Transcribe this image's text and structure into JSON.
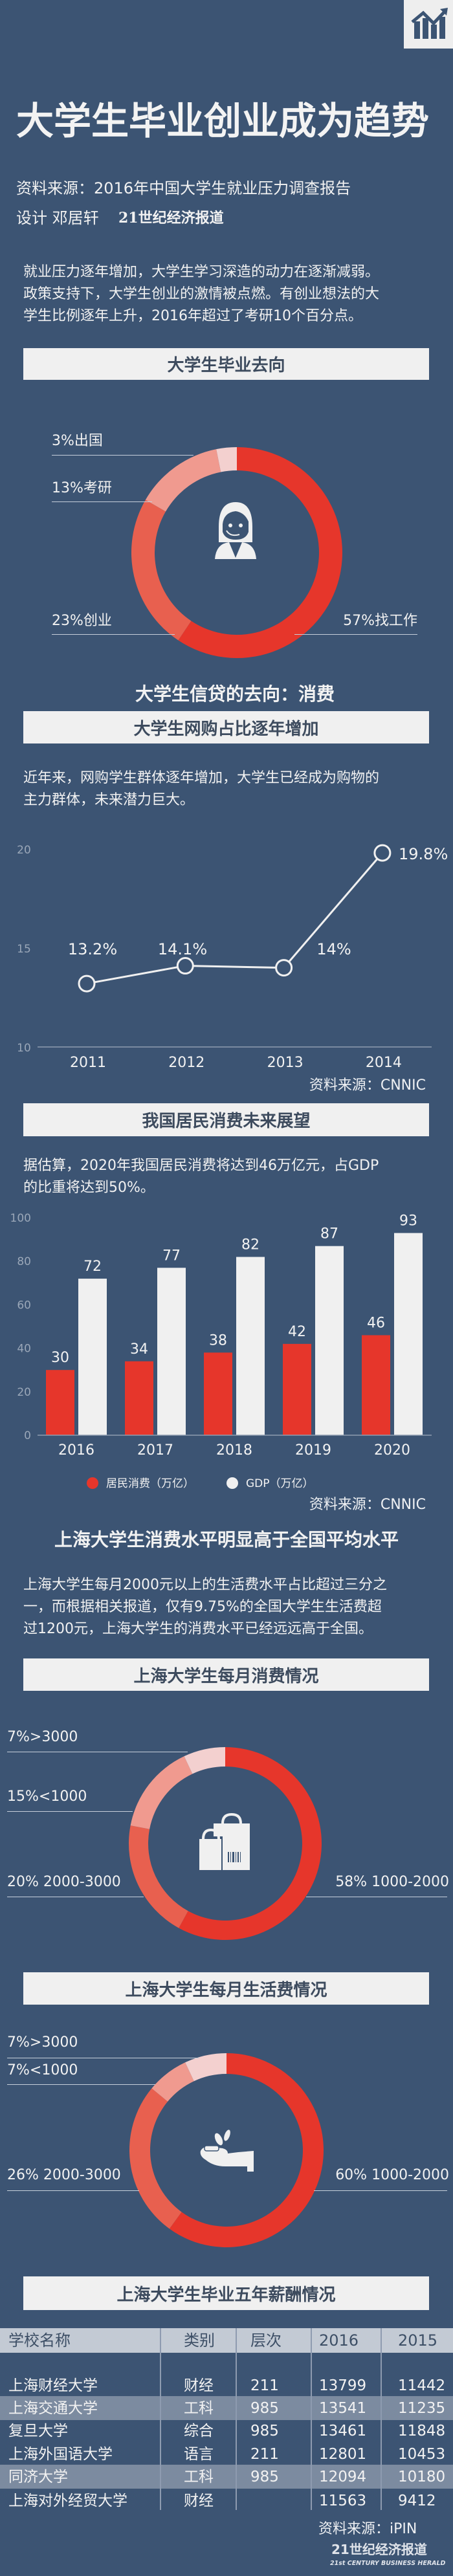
{
  "colors": {
    "background": "#3c5473",
    "banner": "#f0f0f0",
    "banner_text": "#3d4b5e",
    "red": "#e6362b",
    "red2": "#e8604f",
    "pink": "#f09a8f",
    "light_pink": "#f3d0cf",
    "white": "#f0f0f0"
  },
  "header": {
    "logo_icon": "trending-chart-icon",
    "title": "大学生毕业创业成为趋势",
    "source": "资料来源：2016年中国大学生就业压力调查报告",
    "designer": "设计 邓居轩",
    "publisher": "21世纪经济报道"
  },
  "intro": {
    "lines": [
      "就业压力逐年增加，大学生学习深造的动力在逐渐减弱。",
      "政策支持下，大学生创业的激情被点燃。有创业想法的大",
      "学生比例逐年上升，2016年超过了考研10个百分点。"
    ]
  },
  "section_destination": {
    "banner": "大学生毕业去向",
    "icon": "woman-headset-icon",
    "labels": {
      "abroad": "3%出国",
      "grad": "13%考研",
      "startup": "23%创业",
      "job": "57%找工作"
    }
  },
  "credit_heading": "大学生信贷的去向：消费",
  "section_online": {
    "banner": "大学生网购占比逐年增加",
    "lines": [
      "近年来，网购学生群体逐年增加，大学生已经成为购物的",
      "主力群体，未来潜力巨大。"
    ],
    "source": "资料来源：CNNIC"
  },
  "section_consumption": {
    "banner": "我国居民消费未来展望",
    "lines": [
      "据估算，2020年我国居民消费将达到46万亿元，占GDP",
      "的比重将达到50%。"
    ],
    "source": "资料来源：CNNIC"
  },
  "shanghai_heading": "上海大学生消费水平明显高于全国平均水平",
  "shanghai_intro": {
    "lines": [
      "上海大学生每月2000元以上的生活费水平占比超过三分之",
      "一，而根据相关报道，仅有9.75%的全国大学生生活费超",
      "过1200元，上海大学生的消费水平已经远远高于全国。"
    ]
  },
  "section_monthly_spend": {
    "banner": "上海大学生每月消费情况",
    "icon": "shopping-bags-icon",
    "labels": {
      "over3000": "7%>3000",
      "under1000": "15%<1000",
      "mid_high": "20% 2000-3000",
      "mid": "58% 1000-2000"
    }
  },
  "section_living_cost": {
    "banner": "上海大学生每月生活费情况",
    "icon": "hand-coins-icon",
    "labels": {
      "over3000": "7%>3000",
      "under1000": "7%<1000",
      "mid_high": "26% 2000-3000",
      "mid": "60% 1000-2000"
    }
  },
  "section_salary": {
    "banner": "上海大学生毕业五年薪酬情况",
    "headers": [
      "学校名称",
      "类别",
      "层次",
      "2016",
      "2015"
    ],
    "rows": [
      {
        "cells": [
          "上海财经大学",
          "财经",
          "211",
          "13799",
          "11442"
        ],
        "highlighted": false
      },
      {
        "cells": [
          "上海交通大学",
          "工科",
          "985",
          "13541",
          "11235"
        ],
        "highlighted": true
      },
      {
        "cells": [
          "复旦大学",
          "综合",
          "985",
          "13461",
          "11848"
        ],
        "highlighted": false
      },
      {
        "cells": [
          "上海外国语大学",
          "语言",
          "211",
          "12801",
          "10453"
        ],
        "highlighted": false
      },
      {
        "cells": [
          "同济大学",
          "工科",
          "985",
          "12094",
          "10180"
        ],
        "highlighted": true
      },
      {
        "cells": [
          "上海对外经贸大学",
          "财经",
          "",
          "11563",
          "9412"
        ],
        "highlighted": false
      }
    ],
    "source": "资料来源：iPIN"
  },
  "footer": {
    "logo_cn": "21世纪经济报道",
    "logo_en": "21st CENTURY BUSINESS HERALD"
  },
  "chart_data": [
    {
      "type": "pie",
      "variant": "donut",
      "title": "大学生毕业去向",
      "slices": [
        {
          "label": "找工作",
          "value": 57
        },
        {
          "label": "创业",
          "value": 23
        },
        {
          "label": "考研",
          "value": 13
        },
        {
          "label": "出国",
          "value": 3
        }
      ],
      "colors": [
        "#e6362b",
        "#e8604f",
        "#f09a8f",
        "#f3d0cf"
      ]
    },
    {
      "type": "line",
      "title": "大学生网购占比逐年增加",
      "x": [
        "2011",
        "2012",
        "2013",
        "2014"
      ],
      "y": [
        13.2,
        14.1,
        14,
        19.8
      ],
      "data_labels": [
        "13.2%",
        "14.1%",
        "14%",
        "19.8%"
      ],
      "ylim": [
        10,
        20
      ],
      "yticks": [
        10,
        15,
        20
      ],
      "grid": false,
      "color": "#f0f0f0"
    },
    {
      "type": "bar",
      "title": "我国居民消费未来展望",
      "categories": [
        "2016",
        "2017",
        "2018",
        "2019",
        "2020"
      ],
      "series": [
        {
          "name": "居民消费（万亿）",
          "values": [
            30,
            34,
            38,
            42,
            46
          ],
          "color": "#e6362b"
        },
        {
          "name": "GDP（万亿）",
          "values": [
            72,
            77,
            82,
            87,
            93
          ],
          "color": "#f0f0f0"
        }
      ],
      "ylim": [
        0,
        100
      ],
      "yticks": [
        0,
        20,
        40,
        60,
        80,
        100
      ],
      "legend": "bottom",
      "grid": false
    },
    {
      "type": "pie",
      "variant": "donut",
      "title": "上海大学生每月消费情况",
      "slices": [
        {
          "label": "1000-2000",
          "value": 58
        },
        {
          "label": "2000-3000",
          "value": 20
        },
        {
          "label": "<1000",
          "value": 15
        },
        {
          "label": ">3000",
          "value": 7
        }
      ],
      "colors": [
        "#e6362b",
        "#e8604f",
        "#f09a8f",
        "#f3d0cf"
      ]
    },
    {
      "type": "pie",
      "variant": "donut",
      "title": "上海大学生每月生活费情况",
      "slices": [
        {
          "label": "1000-2000",
          "value": 60
        },
        {
          "label": "2000-3000",
          "value": 26
        },
        {
          "label": "<1000",
          "value": 7
        },
        {
          "label": ">3000",
          "value": 7
        }
      ],
      "colors": [
        "#e6362b",
        "#e8604f",
        "#f09a8f",
        "#f3d0cf"
      ]
    }
  ]
}
